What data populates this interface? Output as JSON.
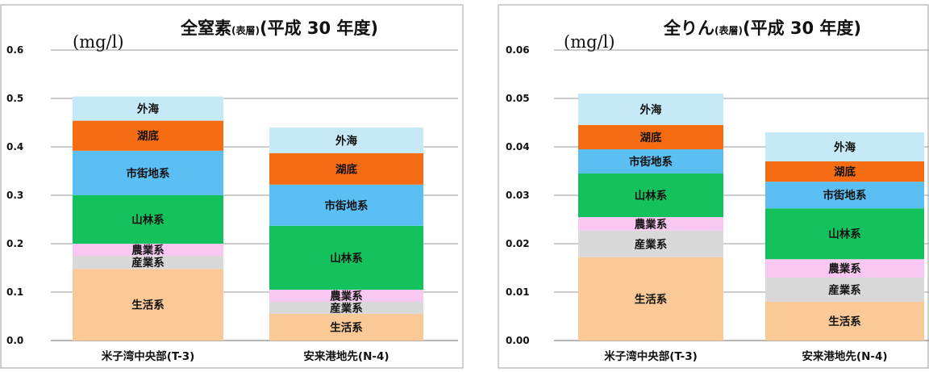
{
  "chart_data": [
    {
      "type": "bar",
      "stacked": true,
      "title_main": "全窒素",
      "title_sub": "(表層)",
      "title_year": "(平成 30 年度)",
      "unit_label": "(mg/l)",
      "categories": [
        "米子湾中央部(T-3)",
        "安来港地先(N-4)"
      ],
      "ylim": [
        0,
        0.6
      ],
      "yticks": [
        "0.0",
        "0.1",
        "0.2",
        "0.3",
        "0.4",
        "0.5",
        "0.6"
      ],
      "ytick_values": [
        0,
        0.1,
        0.2,
        0.3,
        0.4,
        0.5,
        0.6
      ],
      "grid": true,
      "series": [
        {
          "name": "生活系",
          "color": "#FAC996",
          "values": [
            0.148,
            0.055
          ]
        },
        {
          "name": "産業系",
          "color": "#D9D9D9",
          "values": [
            0.027,
            0.025
          ]
        },
        {
          "name": "農業系",
          "color": "#F9C8F2",
          "values": [
            0.025,
            0.025
          ]
        },
        {
          "name": "山林系",
          "color": "#13C25C",
          "values": [
            0.1,
            0.132
          ]
        },
        {
          "name": "市街地系",
          "color": "#5BBFF3",
          "values": [
            0.092,
            0.085
          ]
        },
        {
          "name": "湖底",
          "color": "#F56C12",
          "values": [
            0.062,
            0.065
          ]
        },
        {
          "name": "外海",
          "color": "#C6E9F8",
          "values": [
            0.05,
            0.053
          ]
        }
      ]
    },
    {
      "type": "bar",
      "stacked": true,
      "title_main": "全りん",
      "title_sub": "(表層)",
      "title_year": "(平成 30 年度)",
      "unit_label": "(mg/l)",
      "categories": [
        "米子湾中央部(T-3)",
        "安来港地先(N-4)"
      ],
      "ylim": [
        0,
        0.06
      ],
      "yticks": [
        "0.00",
        "0.01",
        "0.02",
        "0.03",
        "0.04",
        "0.05",
        "0.06"
      ],
      "ytick_values": [
        0,
        0.01,
        0.02,
        0.03,
        0.04,
        0.05,
        0.06
      ],
      "grid": true,
      "series": [
        {
          "name": "生活系",
          "color": "#FAC996",
          "values": [
            0.0172,
            0.008
          ]
        },
        {
          "name": "産業系",
          "color": "#D9D9D9",
          "values": [
            0.0055,
            0.005
          ]
        },
        {
          "name": "農業系",
          "color": "#F9C8F2",
          "values": [
            0.0028,
            0.0038
          ]
        },
        {
          "name": "山林系",
          "color": "#13C25C",
          "values": [
            0.009,
            0.0105
          ]
        },
        {
          "name": "市街地系",
          "color": "#5BBFF3",
          "values": [
            0.005,
            0.0055
          ]
        },
        {
          "name": "湖底",
          "color": "#F56C12",
          "values": [
            0.005,
            0.0042
          ]
        },
        {
          "name": "外海",
          "color": "#C6E9F8",
          "values": [
            0.0065,
            0.006
          ]
        }
      ]
    }
  ]
}
